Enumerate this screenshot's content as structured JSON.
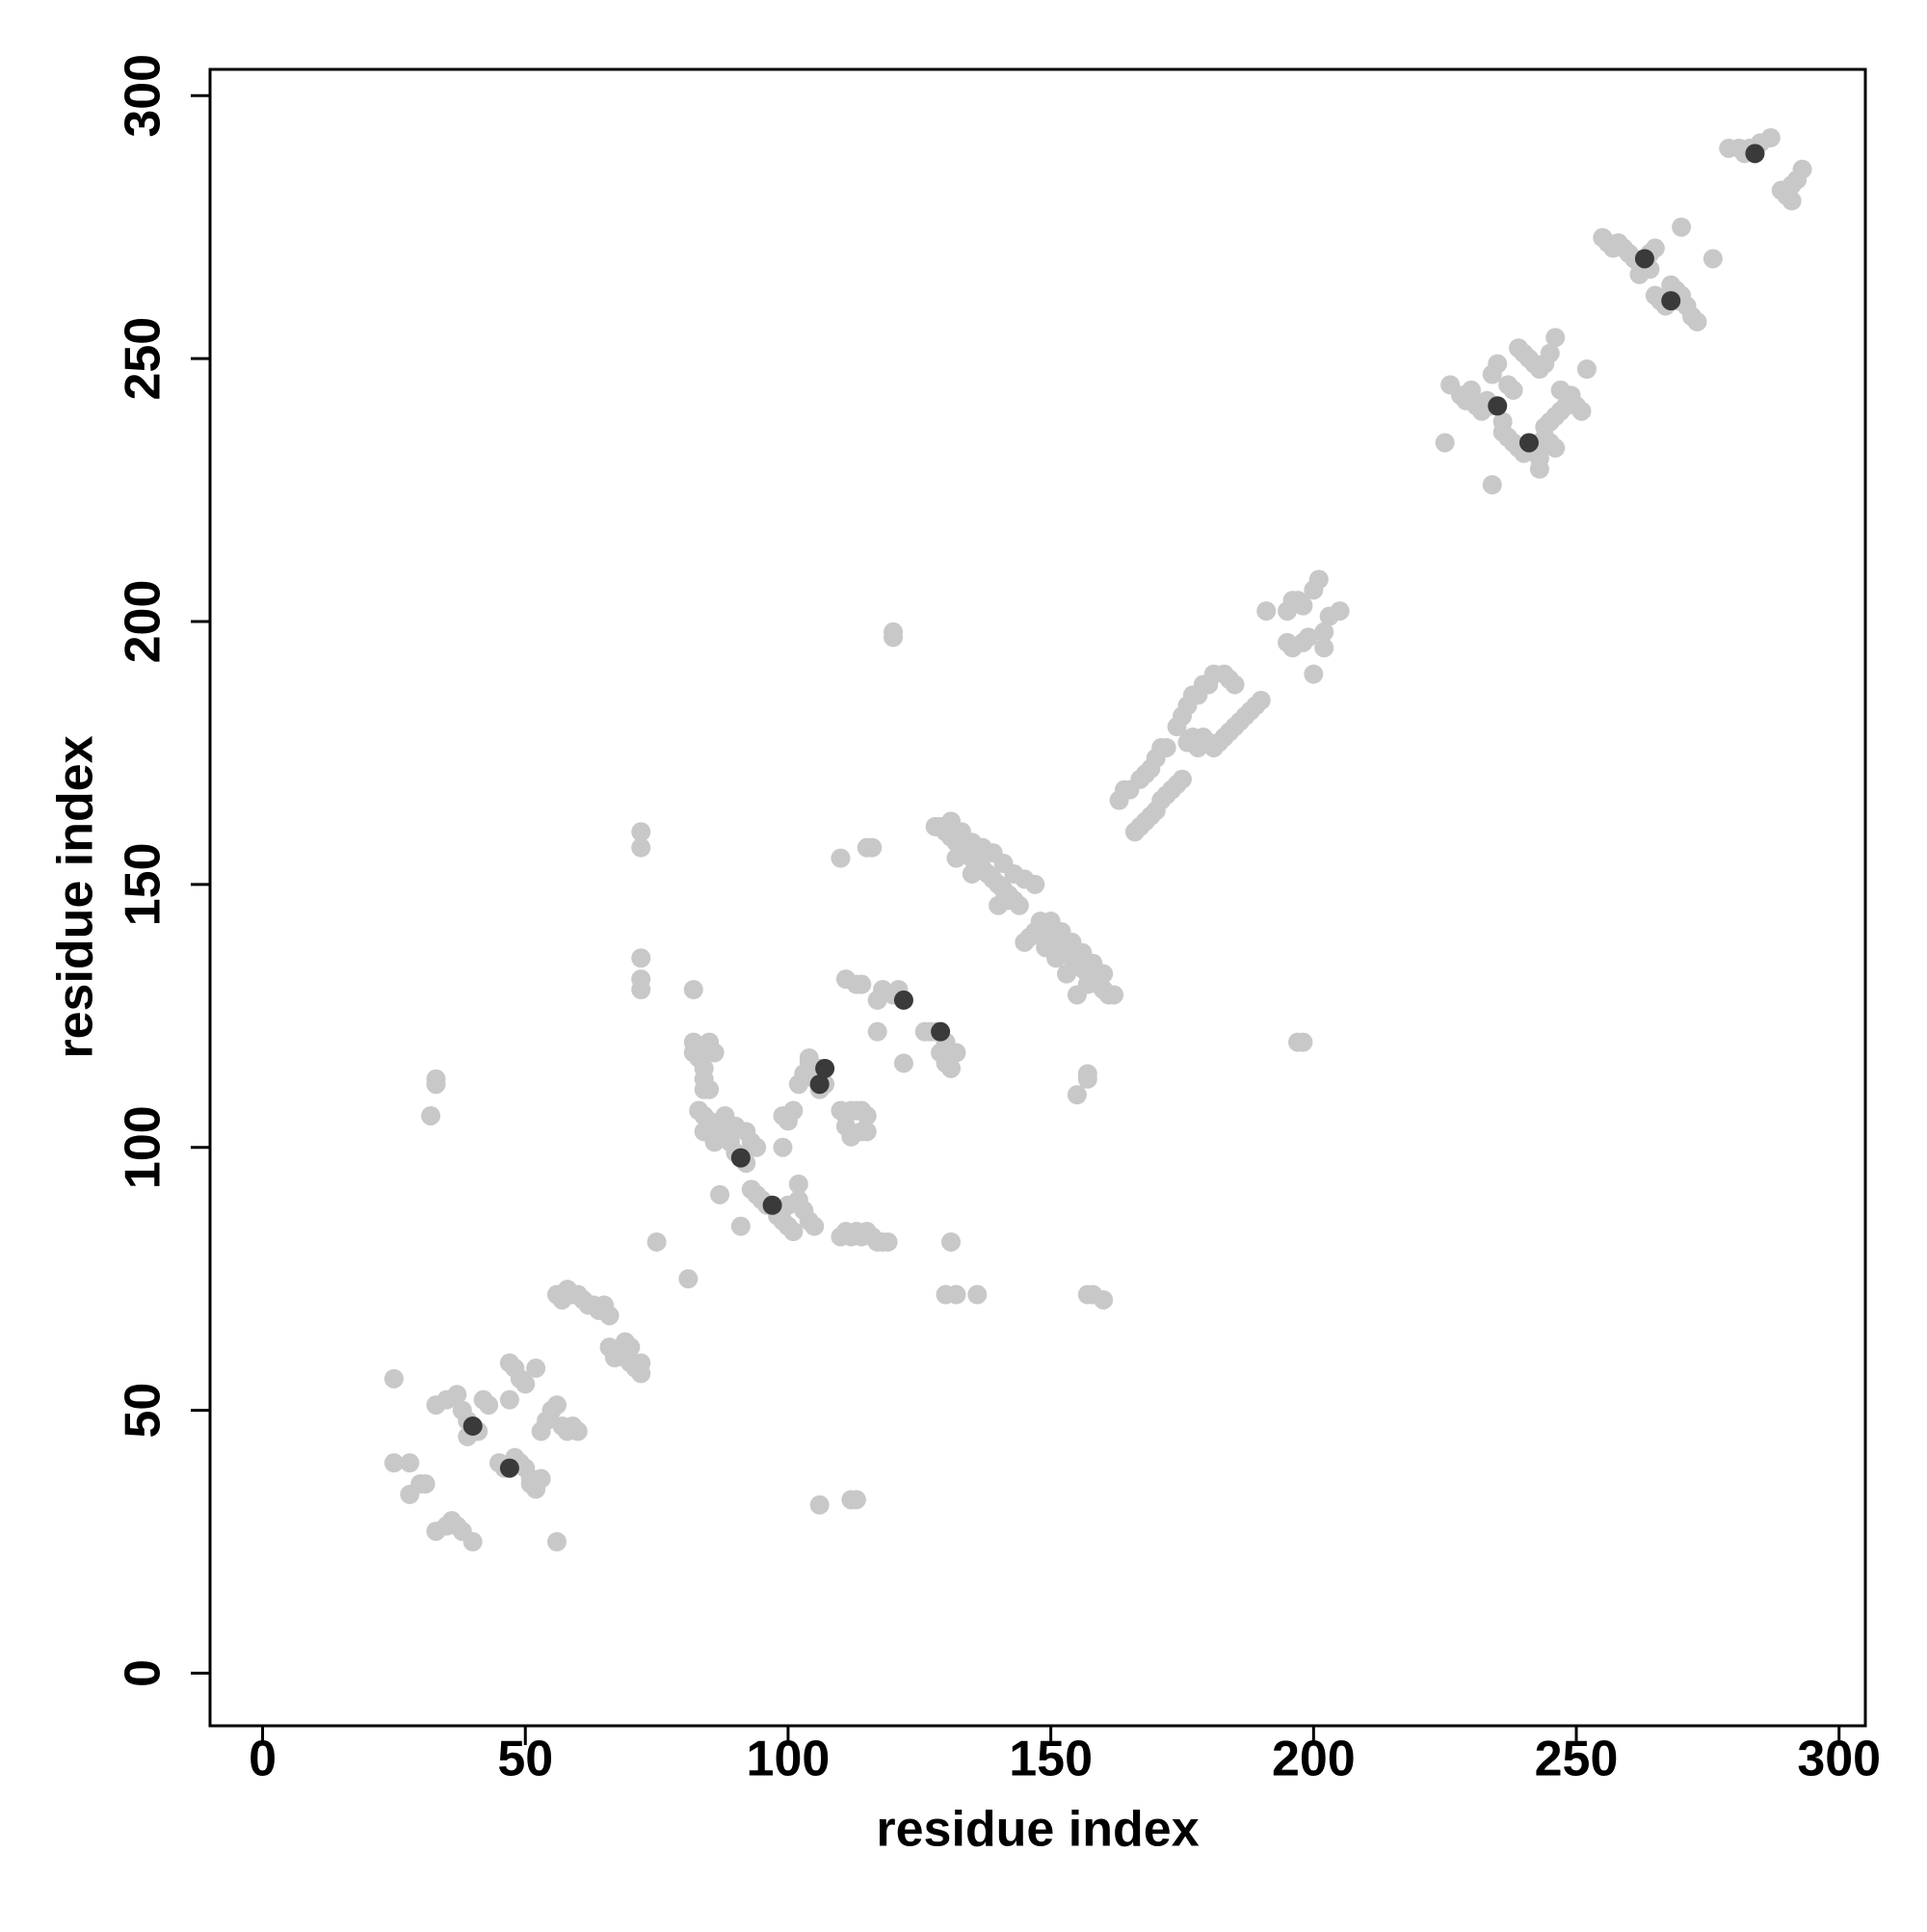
{
  "chart_data": {
    "type": "scatter",
    "xlabel": "residue index",
    "ylabel": "residue index",
    "xlim": [
      -10,
      305
    ],
    "ylim": [
      -10,
      305
    ],
    "xticks": [
      0,
      50,
      100,
      150,
      200,
      250,
      300
    ],
    "yticks": [
      0,
      50,
      100,
      150,
      200,
      250,
      300
    ],
    "series": [
      {
        "color": "#c8c8c8",
        "x": [
          25,
          25,
          28,
          28,
          30,
          31,
          33,
          35,
          36,
          37,
          38,
          40,
          33,
          35,
          37,
          38,
          39,
          41,
          42,
          43,
          39,
          47,
          48,
          49,
          50,
          52,
          47,
          45,
          46,
          48,
          49,
          50,
          51,
          52,
          53,
          48,
          51,
          56,
          53,
          54,
          55,
          56,
          57,
          58,
          59,
          60,
          56,
          57,
          58,
          59,
          60,
          61,
          62,
          63,
          64,
          65,
          66,
          66,
          67,
          68,
          69,
          70,
          71,
          72,
          72,
          69,
          70,
          72,
          72,
          72,
          72,
          72,
          75,
          81,
          82,
          87,
          91,
          32,
          33,
          33,
          106,
          113,
          112,
          82,
          82,
          83,
          84,
          84,
          85,
          86,
          84,
          85,
          83,
          84,
          85,
          86,
          87,
          88,
          89,
          90,
          92,
          88,
          90,
          92,
          93,
          94,
          84,
          86,
          99,
          100,
          101,
          102,
          103,
          104,
          105,
          106,
          107,
          106,
          110,
          111,
          112,
          113,
          114,
          115,
          111,
          112,
          114,
          115,
          93,
          94,
          95,
          96,
          98,
          99,
          100,
          101,
          100,
          102,
          103,
          104,
          105,
          102,
          110,
          111,
          112,
          113,
          114,
          115,
          116,
          117,
          118,
          119,
          99,
          100,
          104,
          111,
          113,
          114,
          115,
          116,
          110,
          117,
          118,
          120,
          121,
          117,
          122,
          126,
          127,
          128,
          130,
          129,
          130,
          131,
          132,
          131,
          130,
          132,
          136,
          120,
          120,
          198,
          197,
          128,
          129,
          130,
          131,
          132,
          133,
          134,
          135,
          136,
          137,
          138,
          139,
          140,
          141,
          142,
          143,
          144,
          131,
          133,
          135,
          137,
          139,
          141,
          143,
          145,
          147,
          140,
          142,
          135,
          132,
          145,
          146,
          147,
          148,
          149,
          150,
          151,
          152,
          153,
          154,
          155,
          156,
          157,
          158,
          159,
          160,
          161,
          162,
          150,
          152,
          154,
          156,
          158,
          160,
          155,
          157,
          153,
          149,
          151,
          155,
          157,
          157,
          157,
          158,
          160,
          163,
          164,
          165,
          167,
          168,
          169,
          170,
          171,
          172,
          166,
          167,
          168,
          169,
          170,
          171,
          172,
          173,
          174,
          175,
          174,
          175,
          176,
          177,
          178,
          179,
          180,
          181,
          183,
          184,
          185,
          176,
          177,
          178,
          179,
          180,
          181,
          182,
          183,
          184,
          185,
          186,
          187,
          188,
          189,
          190,
          191,
          195,
          196,
          197,
          198,
          200,
          201,
          195,
          196,
          198,
          199,
          200,
          202,
          203,
          205,
          202,
          225,
          226,
          228,
          229,
          230,
          231,
          232,
          233,
          234,
          234,
          235,
          237,
          238,
          239,
          240,
          241,
          242,
          243,
          244,
          245,
          246,
          234,
          236,
          237,
          238,
          239,
          240,
          242,
          243,
          244,
          245,
          246,
          243,
          244,
          245,
          246,
          247,
          248,
          249,
          250,
          251,
          252,
          247,
          249,
          236,
          243,
          255,
          256,
          257,
          258,
          259,
          260,
          261,
          262,
          264,
          265,
          262,
          264,
          265,
          266,
          267,
          269,
          270,
          271,
          272,
          273,
          268,
          269,
          270,
          276,
          279,
          281,
          282,
          283,
          285,
          287,
          289,
          290,
          291,
          292,
          293,
          291
        ],
        "values": [
          56,
          40,
          40,
          34,
          36,
          36,
          27,
          28,
          29,
          28,
          27,
          25,
          51,
          52,
          53,
          50,
          48,
          46,
          52,
          51,
          45,
          59,
          58,
          56,
          55,
          58,
          52,
          40,
          39,
          41,
          40,
          39,
          37,
          35,
          37,
          40,
          36,
          25,
          46,
          48,
          50,
          51,
          47,
          46,
          47,
          46,
          72,
          71,
          73,
          72,
          72,
          71,
          70,
          70,
          69,
          70,
          68,
          62,
          60,
          61,
          60,
          59,
          58,
          57,
          59,
          63,
          62,
          160,
          157,
          136,
          132,
          130,
          82,
          75,
          130,
          91,
          85,
          106,
          113,
          112,
          32,
          33,
          33,
          120,
          118,
          117,
          115,
          113,
          120,
          118,
          111,
          111,
          107,
          106,
          105,
          104,
          103,
          102,
          101,
          99,
          97,
          106,
          104,
          103,
          101,
          100,
          103,
          101,
          106,
          106,
          107,
          112,
          114,
          116,
          113,
          115,
          112,
          111,
          107,
          106,
          107,
          107,
          107,
          106,
          104,
          102,
          103,
          103,
          92,
          91,
          90,
          89,
          87,
          86,
          85,
          84,
          89,
          90,
          88,
          86,
          85,
          93,
          83,
          84,
          83,
          84,
          83,
          84,
          83,
          82,
          82,
          82,
          100,
          105,
          117,
          132,
          131,
          131,
          157,
          157,
          155,
          128,
          130,
          129,
          130,
          122,
          116,
          122,
          122,
          122,
          120,
          118,
          116,
          115,
          118,
          82,
          72,
          72,
          72,
          197,
          198,
          120,
          120,
          161,
          161,
          160,
          159,
          158,
          157,
          156,
          155,
          154,
          153,
          152,
          151,
          150,
          149,
          148,
          147,
          146,
          162,
          160,
          158,
          157,
          156,
          154,
          152,
          151,
          150,
          146,
          147,
          152,
          155,
          139,
          140,
          141,
          143,
          142,
          140,
          139,
          138,
          137,
          136,
          135,
          134,
          133,
          132,
          131,
          130,
          129,
          129,
          143,
          141,
          139,
          137,
          135,
          133,
          129,
          131,
          133,
          138,
          136,
          110,
          114,
          113,
          72,
          72,
          71,
          166,
          168,
          168,
          170,
          171,
          172,
          174,
          176,
          176,
          160,
          161,
          162,
          163,
          164,
          166,
          167,
          168,
          169,
          170,
          180,
          182,
          184,
          186,
          186,
          188,
          188,
          190,
          190,
          189,
          188,
          177,
          178,
          176,
          178,
          177,
          176,
          177,
          178,
          179,
          180,
          181,
          182,
          183,
          184,
          185,
          202,
          202,
          204,
          204,
          203,
          206,
          208,
          196,
          195,
          196,
          197,
          190,
          198,
          201,
          202,
          195,
          234,
          245,
          243,
          242,
          244,
          241,
          240,
          242,
          241,
          247,
          249,
          245,
          244,
          252,
          251,
          250,
          249,
          248,
          249,
          251,
          254,
          226,
          236,
          235,
          234,
          233,
          232,
          233,
          234,
          235,
          234,
          233,
          229,
          237,
          238,
          239,
          240,
          241,
          242,
          241,
          240,
          248,
          244,
          243,
          238,
          231,
          273,
          272,
          271,
          272,
          271,
          270,
          269,
          268,
          270,
          271,
          266,
          267,
          262,
          261,
          260,
          261,
          262,
          260,
          258,
          257,
          264,
          263,
          275,
          269,
          290,
          290,
          289,
          290,
          291,
          292,
          282,
          281,
          283,
          284,
          286,
          280
        ]
      },
      {
        "color": "#3a3a3a",
        "x": [
          40,
          47,
          91,
          97,
          106,
          107,
          122,
          129,
          235,
          241,
          263,
          268,
          284
        ],
        "values": [
          47,
          39,
          98,
          89,
          112,
          115,
          128,
          122,
          241,
          234,
          269,
          261,
          289
        ]
      }
    ]
  }
}
